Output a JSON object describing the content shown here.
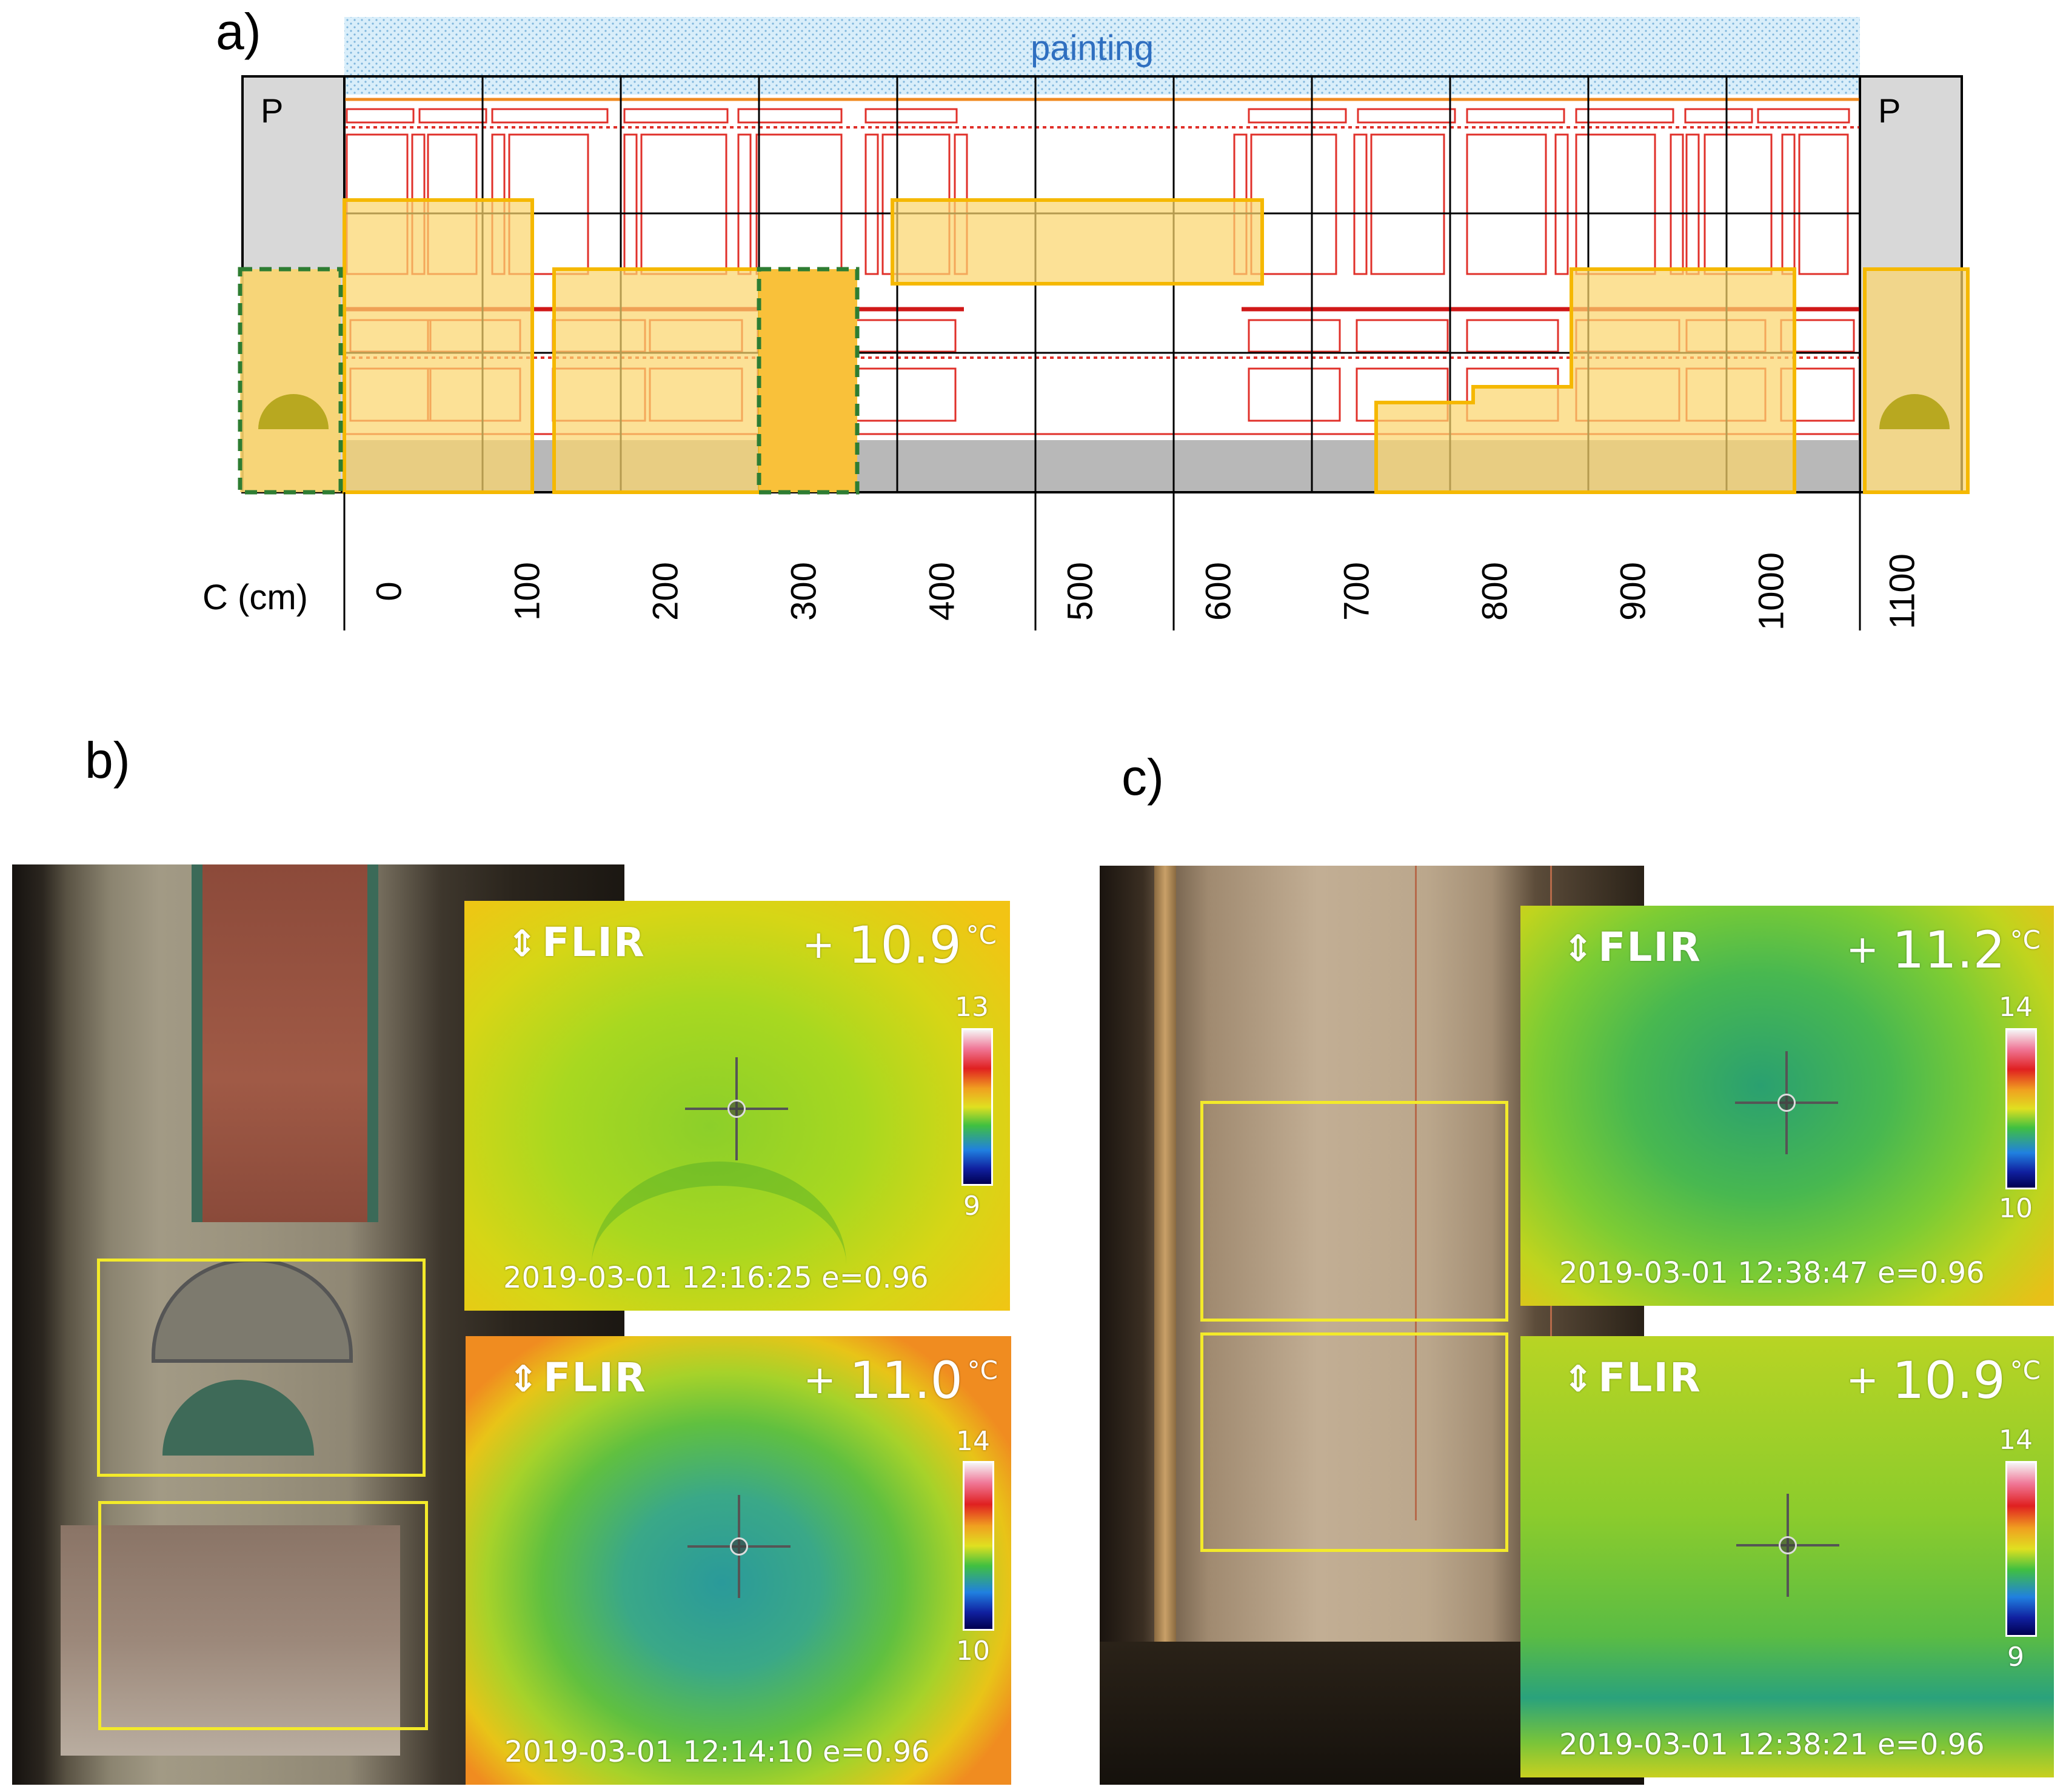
{
  "panel_a": {
    "label": "a)",
    "painting_label": "painting",
    "pillar_label_left": "P",
    "pillar_label_right": "P",
    "axis_title": "C (cm)",
    "ticks": [
      "0",
      "100",
      "200",
      "300",
      "400",
      "500",
      "600",
      "700",
      "800",
      "900",
      "1000",
      "1100"
    ]
  },
  "panel_b": {
    "label": "b)",
    "top_thermal": {
      "brand": "FLIR",
      "temperature": "10.9",
      "unit": "°C",
      "scale_max": "13",
      "scale_min": "9",
      "timestamp": "2019-03-01 12:16:25 e=0.96"
    },
    "bottom_thermal": {
      "brand": "FLIR",
      "temperature": "11.0",
      "unit": "°C",
      "scale_max": "14",
      "scale_min": "10",
      "timestamp": "2019-03-01 12:14:10 e=0.96"
    }
  },
  "panel_c": {
    "label": "c)",
    "top_thermal": {
      "brand": "FLIR",
      "temperature": "11.2",
      "unit": "°C",
      "scale_max": "14",
      "scale_min": "10",
      "timestamp": "2019-03-01 12:38:47 e=0.96"
    },
    "bottom_thermal": {
      "brand": "FLIR",
      "temperature": "10.9",
      "unit": "°C",
      "scale_max": "14",
      "scale_min": "9",
      "timestamp": "2019-03-01 12:38:21 e=0.96"
    }
  },
  "colors": {
    "highlight_fill": "#fbd56e",
    "highlight_stroke": "#f5b800",
    "survey_green": "#2e7d32",
    "painting_blue": "#2f6fc0",
    "decor_red": "#e0302a"
  }
}
